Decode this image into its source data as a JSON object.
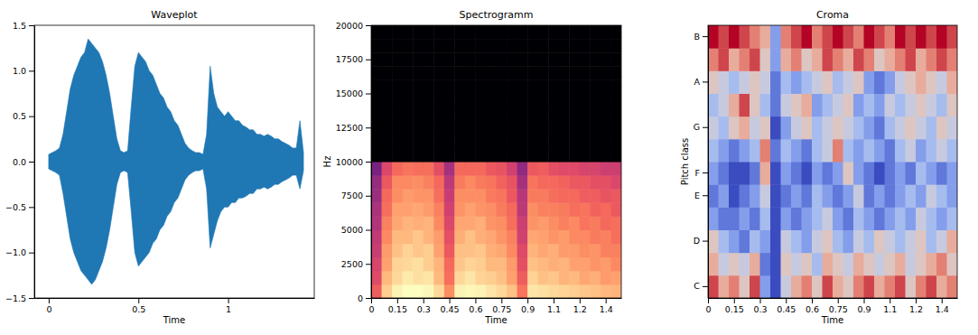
{
  "chart_data": [
    {
      "type": "area",
      "title": "Waveplot",
      "x_label": "Time",
      "color": "#1f77b4",
      "xlim": [
        -0.08,
        1.48
      ],
      "xticks": [
        0,
        0.5,
        1
      ],
      "ylim": [
        -1.5,
        1.5
      ],
      "yticks": [
        {
          "value": -1.5,
          "label": "−1.5"
        },
        {
          "value": -1,
          "label": "−1.0"
        },
        {
          "value": -0.5,
          "label": "−0.5"
        },
        {
          "value": 0,
          "label": "0.0"
        },
        {
          "value": 0.5,
          "label": "0.5"
        },
        {
          "value": 1,
          "label": "1.0"
        },
        {
          "value": 1.5,
          "label": "1.5"
        }
      ],
      "x": [
        0,
        0.02,
        0.04,
        0.06,
        0.08,
        0.1,
        0.12,
        0.14,
        0.16,
        0.18,
        0.2,
        0.22,
        0.24,
        0.26,
        0.28,
        0.3,
        0.32,
        0.34,
        0.36,
        0.38,
        0.4,
        0.42,
        0.44,
        0.46,
        0.48,
        0.5,
        0.52,
        0.54,
        0.56,
        0.58,
        0.6,
        0.62,
        0.64,
        0.66,
        0.68,
        0.7,
        0.72,
        0.74,
        0.76,
        0.78,
        0.8,
        0.82,
        0.84,
        0.86,
        0.88,
        0.9,
        0.92,
        0.94,
        0.96,
        0.98,
        1,
        1.02,
        1.04,
        1.06,
        1.08,
        1.1,
        1.12,
        1.14,
        1.16,
        1.18,
        1.2,
        1.22,
        1.24,
        1.26,
        1.28,
        1.3,
        1.32,
        1.34,
        1.36,
        1.38,
        1.4,
        1.42
      ],
      "upper": [
        0.08,
        0.1,
        0.12,
        0.15,
        0.3,
        0.55,
        0.8,
        0.95,
        1.05,
        1.15,
        1.2,
        1.35,
        1.3,
        1.25,
        1.2,
        1.1,
        0.95,
        0.75,
        0.5,
        0.25,
        0.12,
        0.1,
        0.12,
        0.6,
        1.05,
        1.2,
        1.15,
        1.1,
        1.0,
        0.95,
        0.85,
        0.75,
        0.7,
        0.6,
        0.55,
        0.45,
        0.4,
        0.3,
        0.2,
        0.15,
        0.12,
        0.1,
        0.1,
        0.08,
        0.3,
        1.05,
        0.75,
        0.6,
        0.55,
        0.5,
        0.55,
        0.5,
        0.45,
        0.45,
        0.4,
        0.38,
        0.35,
        0.35,
        0.3,
        0.3,
        0.28,
        0.3,
        0.28,
        0.25,
        0.25,
        0.22,
        0.2,
        0.18,
        0.15,
        0.15,
        0.45,
        0.1
      ],
      "lower": [
        -0.08,
        -0.1,
        -0.12,
        -0.15,
        -0.35,
        -0.6,
        -0.85,
        -1.0,
        -1.1,
        -1.2,
        -1.25,
        -1.3,
        -1.35,
        -1.3,
        -1.2,
        -1.1,
        -0.95,
        -0.75,
        -0.5,
        -0.25,
        -0.12,
        -0.1,
        -0.12,
        -0.55,
        -1.0,
        -1.15,
        -1.1,
        -1.05,
        -1.0,
        -0.9,
        -0.85,
        -0.75,
        -0.7,
        -0.6,
        -0.55,
        -0.45,
        -0.4,
        -0.3,
        -0.2,
        -0.15,
        -0.12,
        -0.1,
        -0.1,
        -0.08,
        -0.3,
        -0.95,
        -0.8,
        -0.65,
        -0.55,
        -0.5,
        -0.5,
        -0.45,
        -0.45,
        -0.4,
        -0.4,
        -0.38,
        -0.35,
        -0.35,
        -0.3,
        -0.3,
        -0.28,
        -0.3,
        -0.28,
        -0.25,
        -0.25,
        -0.22,
        -0.2,
        -0.18,
        -0.15,
        -0.15,
        -0.3,
        -0.1
      ]
    },
    {
      "type": "heatmap",
      "title": "Spectrogramm",
      "x_label": "Time",
      "y_label": "Hz",
      "xlim": [
        0,
        1.44
      ],
      "xticks": [
        0,
        0.15,
        0.3,
        0.45,
        0.6,
        0.75,
        0.9,
        {
          "value": 1.05,
          "label": "1.1"
        },
        1.2,
        {
          "value": 1.35,
          "label": "1.4"
        }
      ],
      "ylim": [
        0,
        20000
      ],
      "yticks": [
        0,
        2500,
        5000,
        7500,
        10000,
        12500,
        15000,
        17500,
        20000
      ],
      "x_edges": [
        0,
        0.06,
        0.12,
        0.18,
        0.24,
        0.3,
        0.36,
        0.42,
        0.48,
        0.54,
        0.6,
        0.66,
        0.72,
        0.78,
        0.84,
        0.9,
        0.96,
        1.02,
        1.08,
        1.14,
        1.2,
        1.26,
        1.32,
        1.38,
        1.44
      ],
      "y_edges": [
        0,
        1000,
        2000,
        3000,
        4000,
        5000,
        6000,
        7000,
        8000,
        9000,
        10000,
        11000,
        12000,
        13000,
        14000,
        15000,
        16000,
        17000,
        18000,
        19000,
        20000
      ],
      "cells": [
        [
          -30,
          -12,
          -6,
          -4,
          -4,
          -5,
          -10,
          -22,
          -6,
          -5,
          -6,
          -8,
          -10,
          -14,
          -26,
          -8,
          -9,
          -10,
          -11,
          -12,
          -13,
          -14,
          -15,
          -16
        ],
        [
          -34,
          -15,
          -10,
          -7,
          -9,
          -8,
          -15,
          -27,
          -10,
          -8,
          -11,
          -12,
          -14,
          -19,
          -30,
          -11,
          -14,
          -13,
          -16,
          -15,
          -18,
          -17,
          -20,
          -19
        ],
        [
          -36,
          -19,
          -11,
          -10,
          -9,
          -12,
          -16,
          -28,
          -13,
          -11,
          -12,
          -15,
          -15,
          -20,
          -33,
          -14,
          -15,
          -17,
          -16,
          -19,
          -19,
          -21,
          -20,
          -23
        ],
        [
          -39,
          -20,
          -14,
          -11,
          -13,
          -12,
          -19,
          -31,
          -14,
          -14,
          -13,
          -17,
          -18,
          -23,
          -34,
          -16,
          -18,
          -17,
          -20,
          -20,
          -22,
          -21,
          -24,
          -24
        ],
        [
          -40,
          -23,
          -15,
          -15,
          -13,
          -16,
          -20,
          -33,
          -17,
          -14,
          -17,
          -18,
          -21,
          -24,
          -37,
          -18,
          -19,
          -21,
          -20,
          -23,
          -23,
          -25,
          -24,
          -27
        ],
        [
          -43,
          -24,
          -18,
          -16,
          -17,
          -16,
          -23,
          -35,
          -18,
          -18,
          -17,
          -21,
          -22,
          -27,
          -38,
          -21,
          -20,
          -22,
          -24,
          -23,
          -26,
          -25,
          -28,
          -27
        ],
        [
          -44,
          -27,
          -19,
          -19,
          -18,
          -20,
          -24,
          -37,
          -21,
          -19,
          -21,
          -22,
          -25,
          -28,
          -41,
          -22,
          -24,
          -24,
          -25,
          -27,
          -26,
          -29,
          -28,
          -31
        ],
        [
          -47,
          -28,
          -22,
          -20,
          -21,
          -21,
          -27,
          -39,
          -22,
          -22,
          -22,
          -25,
          -26,
          -31,
          -42,
          -25,
          -25,
          -27,
          -28,
          -28,
          -30,
          -30,
          -32,
          -31
        ],
        [
          -48,
          -31,
          -23,
          -23,
          -22,
          -24,
          -28,
          -41,
          -25,
          -23,
          -25,
          -26,
          -29,
          -32,
          -45,
          -26,
          -28,
          -28,
          -29,
          -31,
          -31,
          -33,
          -33,
          -35
        ],
        [
          -53,
          -35,
          -28,
          -26,
          -27,
          -27,
          -33,
          -45,
          -28,
          -28,
          -28,
          -31,
          -32,
          -37,
          -49,
          -31,
          -30,
          -33,
          -34,
          -34,
          -36,
          -36,
          -38,
          -38
        ],
        [
          -80,
          -80,
          -80,
          -80,
          -80,
          -80,
          -80,
          -80,
          -80,
          -80,
          -80,
          -80,
          -80,
          -80,
          -80,
          -80,
          -80,
          -80,
          -80,
          -80,
          -80,
          -80,
          -80,
          -80
        ],
        [
          -80,
          -80,
          -80,
          -80,
          -80,
          -80,
          -80,
          -80,
          -80,
          -80,
          -80,
          -80,
          -80,
          -80,
          -80,
          -80,
          -80,
          -80,
          -80,
          -80,
          -80,
          -80,
          -80,
          -80
        ],
        [
          -80,
          -80,
          -80,
          -80,
          -80,
          -80,
          -80,
          -80,
          -80,
          -80,
          -80,
          -80,
          -80,
          -80,
          -80,
          -80,
          -80,
          -80,
          -80,
          -80,
          -80,
          -80,
          -80,
          -80
        ],
        [
          -80,
          -80,
          -80,
          -80,
          -80,
          -80,
          -80,
          -80,
          -80,
          -80,
          -80,
          -80,
          -80,
          -80,
          -80,
          -80,
          -80,
          -80,
          -80,
          -80,
          -80,
          -80,
          -80,
          -80
        ],
        [
          -80,
          -80,
          -80,
          -80,
          -80,
          -80,
          -80,
          -80,
          -80,
          -80,
          -80,
          -80,
          -80,
          -80,
          -80,
          -80,
          -80,
          -80,
          -80,
          -80,
          -80,
          -80,
          -80,
          -80
        ],
        [
          -80,
          -80,
          -80,
          -80,
          -80,
          -80,
          -80,
          -80,
          -80,
          -80,
          -80,
          -80,
          -80,
          -80,
          -80,
          -80,
          -80,
          -80,
          -80,
          -80,
          -80,
          -80,
          -80,
          -80
        ],
        [
          -80,
          -80,
          -80,
          -80,
          -80,
          -80,
          -80,
          -80,
          -80,
          -80,
          -80,
          -80,
          -80,
          -80,
          -80,
          -80,
          -80,
          -80,
          -80,
          -80,
          -80,
          -80,
          -80,
          -80
        ],
        [
          -80,
          -80,
          -80,
          -80,
          -80,
          -80,
          -80,
          -80,
          -80,
          -80,
          -80,
          -80,
          -80,
          -80,
          -80,
          -80,
          -80,
          -80,
          -80,
          -80,
          -80,
          -80,
          -80,
          -80
        ],
        [
          -80,
          -80,
          -80,
          -80,
          -80,
          -80,
          -80,
          -80,
          -80,
          -80,
          -80,
          -80,
          -80,
          -80,
          -80,
          -80,
          -80,
          -80,
          -80,
          -80,
          -80,
          -80,
          -80,
          -80
        ],
        [
          -80,
          -80,
          -80,
          -80,
          -80,
          -80,
          -80,
          -80,
          -80,
          -80,
          -80,
          -80,
          -80,
          -80,
          -80,
          -80,
          -80,
          -80,
          -80,
          -80,
          -80,
          -80,
          -80,
          -80
        ]
      ]
    },
    {
      "type": "heatmap",
      "title": "Croma",
      "x_label": "Time",
      "y_label": "Pitch class",
      "xlim": [
        0,
        1.44
      ],
      "xticks": [
        0,
        0.15,
        0.3,
        0.45,
        0.6,
        0.75,
        0.9,
        {
          "value": 1.05,
          "label": "1.1"
        },
        1.2,
        {
          "value": 1.35,
          "label": "1.4"
        }
      ],
      "x_edges": [
        0,
        0.06,
        0.12,
        0.18,
        0.24,
        0.3,
        0.36,
        0.42,
        0.48,
        0.54,
        0.6,
        0.66,
        0.72,
        0.78,
        0.84,
        0.9,
        0.96,
        1.02,
        1.08,
        1.14,
        1.2,
        1.26,
        1.32,
        1.38,
        1.44
      ],
      "y_categories": [
        "C",
        null,
        "D",
        null,
        "E",
        "F",
        null,
        "G",
        null,
        "A",
        null,
        "B"
      ],
      "cells": [
        [
          0.9,
          0.7,
          0.8,
          0.6,
          0.9,
          0.3,
          0.1,
          0.5,
          0.7,
          0.8,
          0.6,
          0.9,
          0.7,
          0.6,
          0.8,
          0.9,
          0.7,
          0.8,
          0.9,
          0.6,
          0.8,
          0.9,
          0.7,
          0.8
        ],
        [
          0.7,
          0.5,
          0.6,
          0.5,
          0.7,
          0.2,
          0.1,
          0.6,
          0.5,
          0.6,
          0.4,
          0.7,
          0.6,
          0.5,
          0.7,
          0.6,
          0.5,
          0.6,
          0.7,
          0.5,
          0.6,
          0.7,
          0.8,
          0.6
        ],
        [
          0.6,
          0.4,
          0.3,
          0.2,
          0.4,
          0.3,
          0.1,
          0.5,
          0.4,
          0.3,
          0.5,
          0.6,
          0.4,
          0.3,
          0.5,
          0.4,
          0.6,
          0.5,
          0.4,
          0.5,
          0.6,
          0.4,
          0.5,
          0.7
        ],
        [
          0.3,
          0.2,
          0.2,
          0.3,
          0.2,
          0.4,
          0.1,
          0.3,
          0.2,
          0.3,
          0.4,
          0.5,
          0.3,
          0.2,
          0.4,
          0.3,
          0.2,
          0.3,
          0.4,
          0.3,
          0.5,
          0.4,
          0.3,
          0.4
        ],
        [
          0.2,
          0.3,
          0.1,
          0.2,
          0.3,
          0.5,
          0.1,
          0.2,
          0.3,
          0.2,
          0.4,
          0.3,
          0.2,
          0.3,
          0.5,
          0.2,
          0.3,
          0.2,
          0.3,
          0.4,
          0.3,
          0.5,
          0.4,
          0.3
        ],
        [
          0.3,
          0.2,
          0.1,
          0.1,
          0.2,
          0.7,
          0.1,
          0.3,
          0.2,
          0.1,
          0.3,
          0.2,
          0.3,
          0.6,
          0.3,
          0.2,
          0.1,
          0.2,
          0.3,
          0.2,
          0.4,
          0.3,
          0.2,
          0.3
        ],
        [
          0.4,
          0.3,
          0.2,
          0.3,
          0.4,
          0.8,
          0.2,
          0.4,
          0.3,
          0.2,
          0.4,
          0.5,
          0.8,
          0.4,
          0.3,
          0.4,
          0.3,
          0.2,
          0.4,
          0.5,
          0.3,
          0.4,
          0.5,
          0.4
        ],
        [
          0.5,
          0.4,
          0.6,
          0.7,
          0.5,
          0.6,
          0.1,
          0.3,
          0.5,
          0.6,
          0.4,
          0.5,
          0.6,
          0.5,
          0.4,
          0.3,
          0.2,
          0.4,
          0.5,
          0.6,
          0.5,
          0.4,
          0.6,
          0.5
        ],
        [
          0.4,
          0.5,
          0.7,
          0.9,
          0.6,
          0.4,
          0.2,
          0.5,
          0.6,
          0.7,
          0.3,
          0.4,
          0.5,
          0.6,
          0.3,
          0.4,
          0.3,
          0.5,
          0.4,
          0.5,
          0.6,
          0.5,
          0.4,
          0.6
        ],
        [
          0.6,
          0.5,
          0.4,
          0.5,
          0.6,
          0.5,
          0.2,
          0.4,
          0.3,
          0.4,
          0.5,
          0.6,
          0.4,
          0.5,
          0.6,
          0.3,
          0.2,
          0.3,
          0.5,
          0.6,
          0.7,
          0.6,
          0.5,
          0.7
        ],
        [
          0.8,
          0.9,
          0.7,
          0.8,
          0.9,
          0.6,
          0.3,
          0.7,
          0.8,
          0.6,
          0.7,
          0.9,
          0.8,
          0.7,
          0.9,
          0.8,
          0.6,
          0.7,
          0.8,
          0.9,
          0.7,
          0.8,
          0.9,
          0.8
        ],
        [
          1.0,
          0.9,
          1.0,
          0.9,
          0.8,
          0.7,
          0.3,
          0.8,
          0.9,
          1.0,
          0.8,
          0.9,
          1.0,
          0.9,
          0.8,
          1.0,
          0.9,
          0.8,
          1.0,
          0.9,
          1.0,
          0.9,
          1.0,
          0.9
        ]
      ]
    }
  ]
}
